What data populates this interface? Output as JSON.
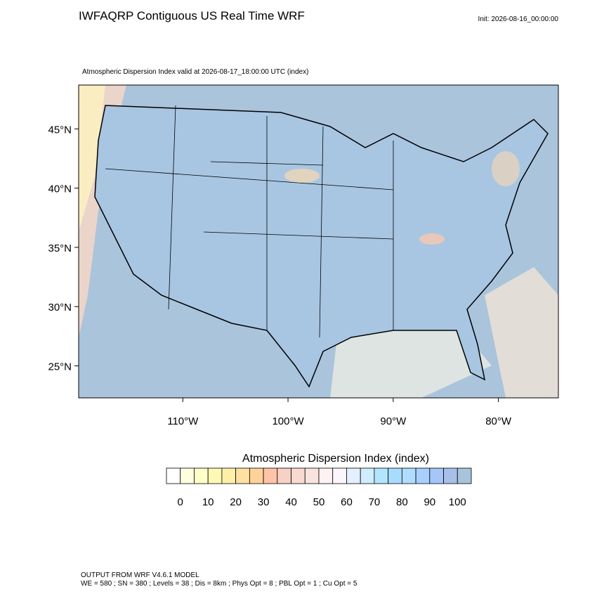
{
  "title": "IWFAQRP Contiguous US Real Time WRF",
  "init": "Init: 2026-08-16_00:00:00",
  "subtitle": "Atmospheric Dispersion Index valid at 2026-08-17_18:00:00 UTC   (index)",
  "map": {
    "latlim": [
      22.3,
      48.7
    ],
    "lonlim": [
      -119.9,
      -74.3
    ],
    "latticks": [
      {
        "value": 25,
        "label": "25°N"
      },
      {
        "value": 30,
        "label": "30°N"
      },
      {
        "value": 35,
        "label": "35°N"
      },
      {
        "value": 40,
        "label": "40°N"
      },
      {
        "value": 45,
        "label": "45°N"
      }
    ],
    "lonticks": [
      {
        "value": -110,
        "label": "110°W"
      },
      {
        "value": -100,
        "label": "100°W"
      },
      {
        "value": -90,
        "label": "90°W"
      },
      {
        "value": -80,
        "label": "80°W"
      }
    ]
  },
  "colorbar": {
    "title": "Atmospheric Dispersion Index  (index)",
    "labels": [
      0,
      10,
      20,
      30,
      40,
      50,
      60,
      70,
      80,
      90,
      100
    ],
    "colors": [
      "#ffffff",
      "#ffffe0",
      "#ffffc8",
      "#fff8b4",
      "#fff0a8",
      "#ffe0a0",
      "#ffd29a",
      "#ffc4a8",
      "#f8d0c4",
      "#f8dad2",
      "#f8e4de",
      "#fff2f2",
      "#fbf6fc",
      "#e4f0ff",
      "#d0ecff",
      "#b2e6ff",
      "#a8dcff",
      "#b0dcff",
      "#a8d0ff",
      "#a6c6f8",
      "#a8c0e8",
      "#a8c4dc"
    ]
  },
  "footer": [
    "OUTPUT FROM WRF V4.6.1 MODEL",
    "WE = 580 ; SN = 380 ; Levels = 38 ; Dis = 8km ; Phys Opt = 8 ; PBL Opt = 1 ; Cu Opt = 5"
  ]
}
